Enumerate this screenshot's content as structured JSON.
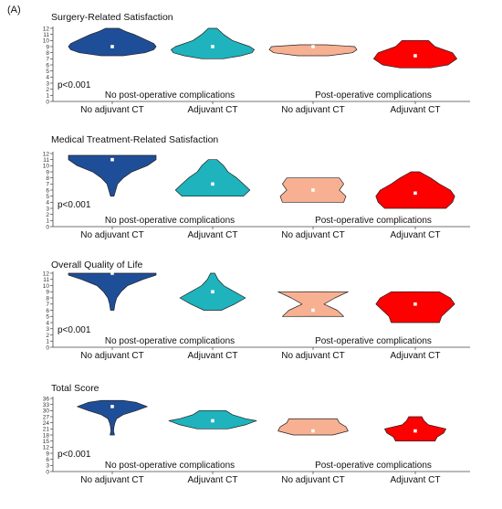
{
  "panel_label": "(A)",
  "chart_data": [
    {
      "type": "violin",
      "title": "Surgery-Related Satisfaction",
      "annotation": "p<0.001",
      "yticks": [
        0,
        1,
        2,
        3,
        4,
        5,
        6,
        7,
        8,
        9,
        10,
        11,
        12
      ],
      "ylim": [
        0,
        12
      ],
      "group_labels": [
        "No  post-operative complications",
        "Post-operative complications"
      ],
      "categories": [
        "No adjuvant CT",
        "Adjuvant CT",
        "No adjuvant CT",
        "Adjuvant CT"
      ],
      "colors": [
        "#1f4e99",
        "#1fb3bd",
        "#f8b092",
        "#fe0000"
      ],
      "series": [
        {
          "median": 9,
          "profile": [
            [
              7.5,
              0.25
            ],
            [
              8,
              0.75
            ],
            [
              8.5,
              0.95
            ],
            [
              9,
              1.0
            ],
            [
              9.5,
              0.95
            ],
            [
              10,
              0.8
            ],
            [
              11,
              0.5
            ],
            [
              11.5,
              0.3
            ],
            [
              12,
              0.15
            ]
          ]
        },
        {
          "median": 9,
          "profile": [
            [
              7,
              0.25
            ],
            [
              7.5,
              0.65
            ],
            [
              8,
              0.9
            ],
            [
              8.5,
              0.95
            ],
            [
              9,
              0.85
            ],
            [
              10,
              0.45
            ],
            [
              11,
              0.25
            ],
            [
              12,
              0.1
            ]
          ]
        },
        {
          "median": 9,
          "profile": [
            [
              7.5,
              0.35
            ],
            [
              8,
              0.9
            ],
            [
              8.5,
              1.0
            ],
            [
              9,
              0.95
            ],
            [
              9.3,
              0.3
            ]
          ]
        },
        {
          "median": 7.5,
          "profile": [
            [
              5.5,
              0.35
            ],
            [
              6,
              0.75
            ],
            [
              7,
              0.95
            ],
            [
              8,
              0.85
            ],
            [
              9,
              0.45
            ],
            [
              10,
              0.3
            ]
          ]
        }
      ]
    },
    {
      "type": "violin",
      "title": "Medical Treatment-Related Satisfaction",
      "annotation": "p<0.001",
      "yticks": [
        0,
        1,
        2,
        3,
        4,
        5,
        6,
        7,
        8,
        9,
        10,
        11,
        12
      ],
      "ylim": [
        0,
        12
      ],
      "group_labels": [
        "No  post-operative complications",
        "Post-operative complications"
      ],
      "categories": [
        "No adjuvant CT",
        "Adjuvant CT",
        "No adjuvant CT",
        "Adjuvant CT"
      ],
      "colors": [
        "#1f4e99",
        "#1fb3bd",
        "#f8b092",
        "#fe0000"
      ],
      "series": [
        {
          "median": 11,
          "profile": [
            [
              5,
              0.04
            ],
            [
              6,
              0.08
            ],
            [
              7,
              0.12
            ],
            [
              8,
              0.25
            ],
            [
              9,
              0.45
            ],
            [
              10,
              0.8
            ],
            [
              11,
              1.0
            ],
            [
              11.7,
              1.0
            ]
          ]
        },
        {
          "median": 7,
          "profile": [
            [
              5,
              0.7
            ],
            [
              6,
              0.85
            ],
            [
              7,
              0.7
            ],
            [
              8,
              0.55
            ],
            [
              9,
              0.35
            ],
            [
              10,
              0.25
            ],
            [
              11,
              0.1
            ]
          ]
        },
        {
          "median": 6,
          "profile": [
            [
              4,
              0.7
            ],
            [
              5,
              0.75
            ],
            [
              6,
              0.6
            ],
            [
              7,
              0.7
            ],
            [
              8,
              0.6
            ]
          ]
        },
        {
          "median": 5.5,
          "profile": [
            [
              3,
              0.7
            ],
            [
              4,
              0.85
            ],
            [
              5,
              0.9
            ],
            [
              6,
              0.8
            ],
            [
              7,
              0.55
            ],
            [
              8,
              0.35
            ],
            [
              9,
              0.1
            ]
          ]
        }
      ]
    },
    {
      "type": "violin",
      "title": "Overall Quality of Life",
      "annotation": "p<0.001",
      "yticks": [
        0,
        1,
        2,
        3,
        4,
        5,
        6,
        7,
        8,
        9,
        10,
        11,
        12
      ],
      "ylim": [
        0,
        12
      ],
      "group_labels": [
        "No  post-operative complications",
        "Post-operative complications"
      ],
      "categories": [
        "No adjuvant CT",
        "Adjuvant CT",
        "No adjuvant CT",
        "Adjuvant CT"
      ],
      "colors": [
        "#1f4e99",
        "#1fb3bd",
        "#f8b092",
        "#fe0000"
      ],
      "series": [
        {
          "median": 12,
          "profile": [
            [
              6,
              0.04
            ],
            [
              7,
              0.06
            ],
            [
              8,
              0.1
            ],
            [
              9,
              0.2
            ],
            [
              10,
              0.35
            ],
            [
              11,
              0.7
            ],
            [
              11.7,
              1.0
            ],
            [
              12,
              1.0
            ]
          ]
        },
        {
          "median": 9,
          "profile": [
            [
              6,
              0.2
            ],
            [
              7,
              0.5
            ],
            [
              8,
              0.75
            ],
            [
              9,
              0.5
            ],
            [
              10,
              0.25
            ],
            [
              11,
              0.12
            ],
            [
              12,
              0.05
            ]
          ]
        },
        {
          "median": 6,
          "profile": [
            [
              5,
              0.7
            ],
            [
              6,
              0.55
            ],
            [
              7,
              0.25
            ],
            [
              8,
              0.5
            ],
            [
              9,
              0.8
            ]
          ]
        },
        {
          "median": 7,
          "profile": [
            [
              4,
              0.55
            ],
            [
              5,
              0.6
            ],
            [
              6,
              0.75
            ],
            [
              7,
              0.9
            ],
            [
              8,
              0.8
            ],
            [
              9,
              0.55
            ]
          ]
        }
      ]
    },
    {
      "type": "violin",
      "title": "Total Score",
      "annotation": "p<0.001",
      "yticks": [
        0,
        3,
        6,
        9,
        12,
        15,
        18,
        21,
        24,
        27,
        30,
        33,
        36
      ],
      "ylim": [
        0,
        36
      ],
      "group_labels": [
        "No  post-operative complications",
        "Post-operative complications"
      ],
      "categories": [
        "No adjuvant CT",
        "Adjuvant CT",
        "No adjuvant CT",
        "Adjuvant CT"
      ],
      "colors": [
        "#1f4e99",
        "#1fb3bd",
        "#f8b092",
        "#fe0000"
      ],
      "series": [
        {
          "median": 32,
          "profile": [
            [
              18,
              0.05
            ],
            [
              20,
              0.03
            ],
            [
              22,
              0.04
            ],
            [
              24,
              0.06
            ],
            [
              26,
              0.1
            ],
            [
              28,
              0.25
            ],
            [
              30,
              0.55
            ],
            [
              32,
              0.8
            ],
            [
              34,
              0.55
            ],
            [
              35,
              0.25
            ]
          ]
        },
        {
          "median": 25,
          "profile": [
            [
              21,
              0.35
            ],
            [
              23,
              0.75
            ],
            [
              25,
              1.0
            ],
            [
              26,
              0.75
            ],
            [
              28,
              0.45
            ],
            [
              30,
              0.3
            ]
          ]
        },
        {
          "median": 20,
          "profile": [
            [
              18,
              0.45
            ],
            [
              20,
              0.8
            ],
            [
              22,
              0.75
            ],
            [
              24,
              0.6
            ],
            [
              26,
              0.55
            ]
          ]
        },
        {
          "median": 20,
          "profile": [
            [
              15,
              0.45
            ],
            [
              17,
              0.5
            ],
            [
              19,
              0.65
            ],
            [
              21,
              0.7
            ],
            [
              23,
              0.3
            ],
            [
              25,
              0.2
            ],
            [
              27,
              0.15
            ]
          ]
        }
      ]
    }
  ]
}
